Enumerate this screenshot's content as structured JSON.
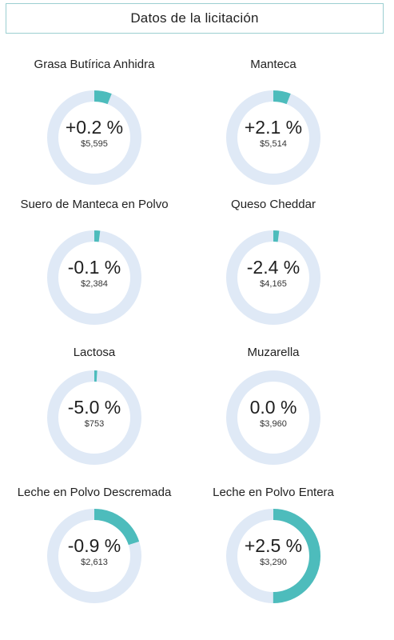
{
  "header": {
    "title": "Datos de la licitación"
  },
  "colors": {
    "track": "#dfe9f6",
    "fill": "#4dbcbc",
    "border": "#9ccfd1"
  },
  "chart_data": {
    "type": "donut",
    "items": [
      {
        "name": "Grasa Butírica Anhidra",
        "change_label": "+0.2 %",
        "change_pct": 0.2,
        "price": "$5,595",
        "fill_fraction": 0.06
      },
      {
        "name": "Manteca",
        "change_label": "+2.1 %",
        "change_pct": 2.1,
        "price": "$5,514",
        "fill_fraction": 0.06
      },
      {
        "name": "Suero de Manteca en Polvo",
        "change_label": "-0.1 %",
        "change_pct": -0.1,
        "price": "$2,384",
        "fill_fraction": 0.02
      },
      {
        "name": "Queso Cheddar",
        "change_label": "-2.4 %",
        "change_pct": -2.4,
        "price": "$4,165",
        "fill_fraction": 0.02
      },
      {
        "name": "Lactosa",
        "change_label": "-5.0 %",
        "change_pct": -5.0,
        "price": "$753",
        "fill_fraction": 0.01
      },
      {
        "name": "Muzarella",
        "change_label": "0.0 %",
        "change_pct": 0.0,
        "price": "$3,960",
        "fill_fraction": 0.0
      },
      {
        "name": "Leche en Polvo Descremada",
        "change_label": "-0.9 %",
        "change_pct": -0.9,
        "price": "$2,613",
        "fill_fraction": 0.2
      },
      {
        "name": "Leche en Polvo Entera",
        "change_label": "+2.5 %",
        "change_pct": 2.5,
        "price": "$3,290",
        "fill_fraction": 0.5
      }
    ]
  }
}
